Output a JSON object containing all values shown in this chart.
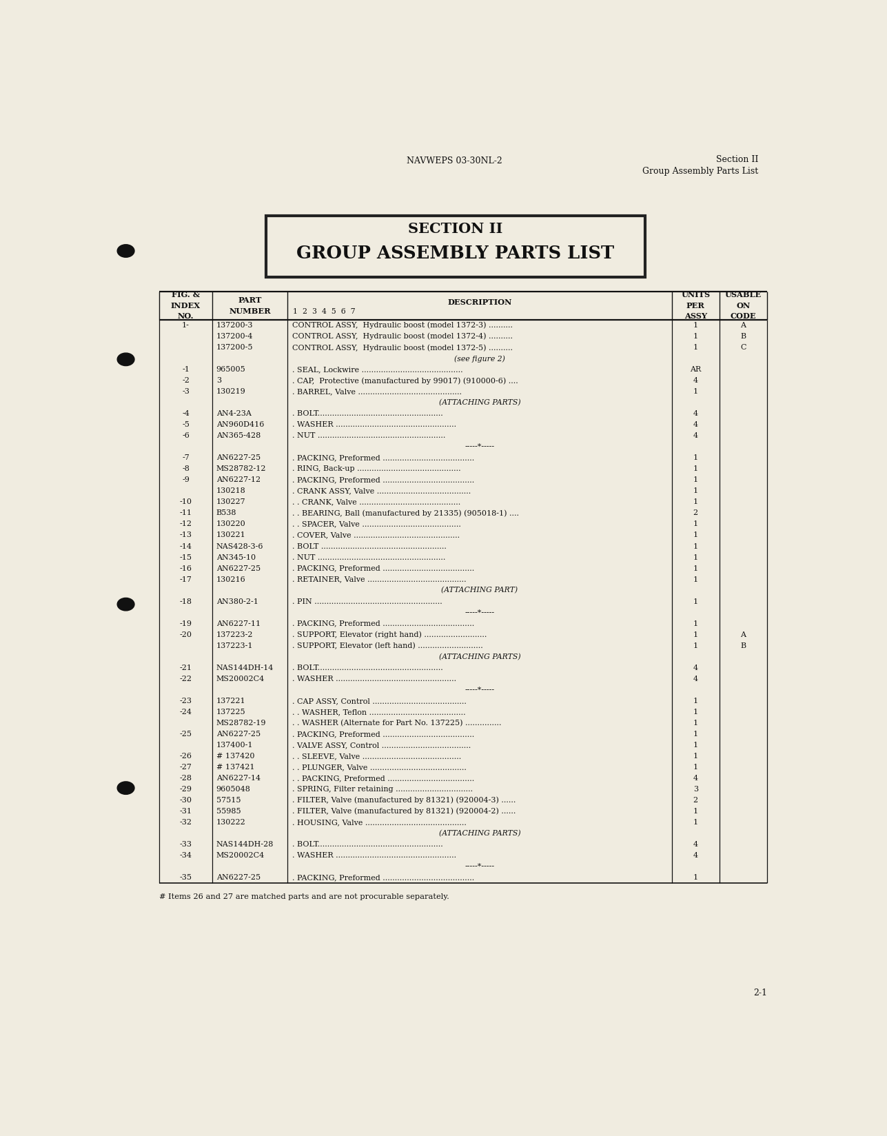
{
  "page_bg": "#f0ece0",
  "header_center": "NAVWEPS 03-30NL-2",
  "header_right_line1": "Section II",
  "header_right_line2": "Group Assembly Parts List",
  "section_title_line1": "SECTION II",
  "section_title_line2": "GROUP ASSEMBLY PARTS LIST",
  "footer_note": "# Items 26 and 27 are matched parts and are not procurable separately.",
  "page_num": "2-1",
  "rows": [
    [
      "1-",
      "137200-3",
      "CONTROL ASSY,  Hydraulic boost (model 1372-3) ..........",
      "1",
      "A"
    ],
    [
      "",
      "137200-4",
      "CONTROL ASSY,  Hydraulic boost (model 1372-4) ..........",
      "1",
      "B"
    ],
    [
      "",
      "137200-5",
      "CONTROL ASSY,  Hydraulic boost (model 1372-5) ..........",
      "1",
      "C"
    ],
    [
      "",
      "",
      "(see figure 2)",
      "",
      ""
    ],
    [
      "-1",
      "965005",
      ". SEAL, Lockwire ..........................................",
      "AR",
      ""
    ],
    [
      "-2",
      "3",
      ". CAP,  Protective (manufactured by 99017) (910000-6) ....",
      "4",
      ""
    ],
    [
      "-3",
      "130219",
      ". BARREL, Valve ...........................................",
      "1",
      ""
    ],
    [
      "",
      "",
      "(ATTACHING PARTS)",
      "",
      ""
    ],
    [
      "-4",
      "AN4-23A",
      ". BOLT....................................................",
      "4",
      ""
    ],
    [
      "-5",
      "AN960D416",
      ". WASHER ..................................................",
      "4",
      ""
    ],
    [
      "-6",
      "AN365-428",
      ". NUT .....................................................",
      "4",
      ""
    ],
    [
      "",
      "",
      "-----*-----",
      "",
      ""
    ],
    [
      "-7",
      "AN6227-25",
      ". PACKING, Preformed ......................................",
      "1",
      ""
    ],
    [
      "-8",
      "MS28782-12",
      ". RING, Back-up ...........................................",
      "1",
      ""
    ],
    [
      "-9",
      "AN6227-12",
      ". PACKING, Preformed ......................................",
      "1",
      ""
    ],
    [
      "",
      "130218",
      ". CRANK ASSY, Valve .......................................",
      "1",
      ""
    ],
    [
      "-10",
      "130227",
      ". . CRANK, Valve ..........................................",
      "1",
      ""
    ],
    [
      "-11",
      "B538",
      ". . BEARING, Ball (manufactured by 21335) (905018-1) ....",
      "2",
      ""
    ],
    [
      "-12",
      "130220",
      ". . SPACER, Valve .........................................",
      "1",
      ""
    ],
    [
      "-13",
      "130221",
      ". COVER, Valve ............................................",
      "1",
      ""
    ],
    [
      "-14",
      "NAS428-3-6",
      ". BOLT ....................................................",
      "1",
      ""
    ],
    [
      "-15",
      "AN345-10",
      ". NUT .....................................................",
      "1",
      ""
    ],
    [
      "-16",
      "AN6227-25",
      ". PACKING, Preformed ......................................",
      "1",
      ""
    ],
    [
      "-17",
      "130216",
      ". RETAINER, Valve .........................................",
      "1",
      ""
    ],
    [
      "",
      "",
      "(ATTACHING PART)",
      "",
      ""
    ],
    [
      "-18",
      "AN380-2-1",
      ". PIN .....................................................",
      "1",
      ""
    ],
    [
      "",
      "",
      "-----*-----",
      "",
      ""
    ],
    [
      "-19",
      "AN6227-11",
      ". PACKING, Preformed ......................................",
      "1",
      ""
    ],
    [
      "-20",
      "137223-2",
      ". SUPPORT, Elevator (right hand) ..........................",
      "1",
      "A"
    ],
    [
      "",
      "137223-1",
      ". SUPPORT, Elevator (left hand) ...........................",
      "1",
      "B"
    ],
    [
      "",
      "",
      "(ATTACHING PARTS)",
      "",
      ""
    ],
    [
      "-21",
      "NAS144DH-14",
      ". BOLT....................................................",
      "4",
      ""
    ],
    [
      "-22",
      "MS20002C4",
      ". WASHER ..................................................",
      "4",
      ""
    ],
    [
      "",
      "",
      "-----*-----",
      "",
      ""
    ],
    [
      "-23",
      "137221",
      ". CAP ASSY, Control .......................................",
      "1",
      ""
    ],
    [
      "-24",
      "137225",
      ". . WASHER, Teflon ........................................",
      "1",
      ""
    ],
    [
      "",
      "MS28782-19",
      ". . WASHER (Alternate for Part No. 137225) ...............",
      "1",
      ""
    ],
    [
      "-25",
      "AN6227-25",
      ". PACKING, Preformed ......................................",
      "1",
      ""
    ],
    [
      "",
      "137400-1",
      ". VALVE ASSY, Control .....................................",
      "1",
      ""
    ],
    [
      "-26",
      "# 137420",
      ". . SLEEVE, Valve .........................................",
      "1",
      ""
    ],
    [
      "-27",
      "# 137421",
      ". . PLUNGER, Valve ........................................",
      "1",
      ""
    ],
    [
      "-28",
      "AN6227-14",
      ". . PACKING, Preformed ....................................",
      "4",
      ""
    ],
    [
      "-29",
      "9605048",
      ". SPRING, Filter retaining ................................",
      "3",
      ""
    ],
    [
      "-30",
      "57515",
      ". FILTER, Valve (manufactured by 81321) (920004-3) ......",
      "2",
      ""
    ],
    [
      "-31",
      "55985",
      ". FILTER, Valve (manufactured by 81321) (920004-2) ......",
      "1",
      ""
    ],
    [
      "-32",
      "130222",
      ". HOUSING, Valve ..........................................",
      "1",
      ""
    ],
    [
      "",
      "",
      "(ATTACHING PARTS)",
      "",
      ""
    ],
    [
      "-33",
      "NAS144DH-28",
      ". BOLT....................................................",
      "4",
      ""
    ],
    [
      "-34",
      "MS20002C4",
      ". WASHER ..................................................",
      "4",
      ""
    ],
    [
      "",
      "",
      "-----*-----",
      "",
      ""
    ],
    [
      "-35",
      "AN6227-25",
      ". PACKING, Preformed ......................................",
      "1",
      ""
    ]
  ]
}
